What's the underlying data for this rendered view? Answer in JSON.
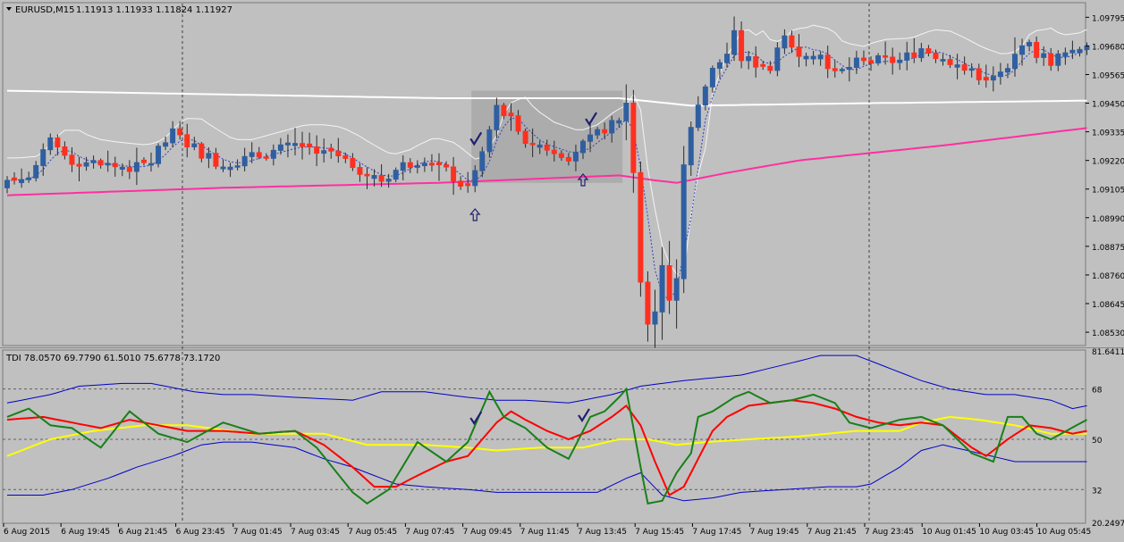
{
  "header": {
    "symbol": "EURUSD,M15",
    "ohlc": "1.11913 1.11933 1.11824 1.11927",
    "triangle_icon": "triangle-down-icon"
  },
  "indicator": {
    "label": "TDI 78.0570 69.7790 61.5010 75.6778 73.1720"
  },
  "colors": {
    "background": "#c0c0c0",
    "bull": "#2f5fa0",
    "bear": "#ff3020",
    "ema": "#ff2fa0",
    "white_line": "#ffffff",
    "tdi_green": "#188018",
    "tdi_red": "#ff0000",
    "tdi_yellow": "#ffff00",
    "tdi_blue": "#0000c8",
    "annotation": "#202070",
    "box": "#a8a8a8"
  },
  "chart_data": [
    {
      "type": "candlestick",
      "ylim": [
        1.0848,
        1.0985
      ],
      "price_ticks": [
        "1.09795",
        "1.09680",
        "1.09565",
        "1.09450",
        "1.09335",
        "1.09220",
        "1.09105",
        "1.08990",
        "1.08875",
        "1.08760",
        "1.08645",
        "1.08530"
      ],
      "time_labels": [
        "6 Aug 2015",
        "6 Aug 19:45",
        "6 Aug 21:45",
        "6 Aug 23:45",
        "7 Aug 01:45",
        "7 Aug 03:45",
        "7 Aug 05:45",
        "7 Aug 07:45",
        "7 Aug 09:45",
        "7 Aug 11:45",
        "7 Aug 13:45",
        "7 Aug 15:45",
        "7 Aug 17:45",
        "7 Aug 19:45",
        "7 Aug 21:45",
        "7 Aug 23:45",
        "10 Aug 01:45",
        "10 Aug 03:45",
        "10 Aug 05:45"
      ],
      "close_anchors": [
        [
          0,
          1.0914
        ],
        [
          3,
          1.0915
        ],
        [
          6,
          1.0929
        ],
        [
          9,
          1.0922
        ],
        [
          14,
          1.092
        ],
        [
          18,
          1.0919
        ],
        [
          20,
          1.0922
        ],
        [
          23,
          1.0933
        ],
        [
          27,
          1.0925
        ],
        [
          30,
          1.092
        ],
        [
          35,
          1.0924
        ],
        [
          40,
          1.0928
        ],
        [
          45,
          1.0926
        ],
        [
          48,
          1.092
        ],
        [
          52,
          1.0914
        ],
        [
          55,
          1.092
        ],
        [
          58,
          1.0923
        ],
        [
          61,
          1.0918
        ],
        [
          64,
          1.091
        ],
        [
          66,
          1.0925
        ],
        [
          68,
          1.0943
        ],
        [
          70,
          1.0938
        ],
        [
          72,
          1.093
        ],
        [
          75,
          1.0927
        ],
        [
          78,
          1.0924
        ],
        [
          81,
          1.093
        ],
        [
          83,
          1.0935
        ],
        [
          85,
          1.0937
        ],
        [
          86,
          1.0947
        ],
        [
          87,
          1.0917
        ],
        [
          88,
          1.0875
        ],
        [
          89,
          1.0858
        ],
        [
          90,
          1.0862
        ],
        [
          91,
          1.0878
        ],
        [
          92,
          1.0866
        ],
        [
          93,
          1.0874
        ],
        [
          94,
          1.0922
        ],
        [
          96,
          1.0946
        ],
        [
          98,
          1.0958
        ],
        [
          100,
          1.0965
        ],
        [
          101,
          1.0972
        ],
        [
          102,
          1.0963
        ],
        [
          104,
          1.0961
        ],
        [
          106,
          1.096
        ],
        [
          108,
          1.097
        ],
        [
          110,
          1.0966
        ],
        [
          113,
          1.0966
        ],
        [
          115,
          1.0956
        ],
        [
          118,
          1.0961
        ],
        [
          121,
          1.0962
        ],
        [
          124,
          1.0962
        ],
        [
          127,
          1.0967
        ],
        [
          131,
          1.0962
        ],
        [
          134,
          1.0957
        ],
        [
          137,
          1.0955
        ],
        [
          139,
          1.0958
        ],
        [
          141,
          1.097
        ],
        [
          143,
          1.0965
        ],
        [
          145,
          1.0962
        ],
        [
          148,
          1.0966
        ],
        [
          150,
          1.0969
        ]
      ],
      "ema_anchors": [
        [
          0,
          1.0908
        ],
        [
          30,
          1.0911
        ],
        [
          60,
          1.0913
        ],
        [
          85,
          1.0916
        ],
        [
          90,
          1.0914
        ],
        [
          93,
          1.0913
        ],
        [
          100,
          1.0917
        ],
        [
          110,
          1.0922
        ],
        [
          130,
          1.0928
        ],
        [
          150,
          1.0935
        ]
      ],
      "white_line_anchors": [
        [
          0,
          1.095
        ],
        [
          40,
          1.0948
        ],
        [
          60,
          1.0947
        ],
        [
          85,
          1.0947
        ],
        [
          95,
          1.0944
        ],
        [
          120,
          1.0945
        ],
        [
          150,
          1.0946
        ]
      ],
      "gray_box": {
        "bar_start": 65,
        "bar_end": 85,
        "top": 1.095,
        "bottom": 1.0913
      },
      "check_marks": [
        {
          "bar": 65,
          "price": 1.093
        },
        {
          "bar": 81,
          "price": 1.0938
        }
      ],
      "arrows": [
        {
          "bar": 65,
          "price": 1.09
        },
        {
          "bar": 80,
          "price": 1.0914
        }
      ]
    },
    {
      "type": "line",
      "title": "TDI",
      "yticks": [
        "81.6411",
        "68",
        "50",
        "32",
        "20.2497"
      ],
      "levels": [
        68,
        50,
        32
      ],
      "ylim": [
        20.2497,
        81.6411
      ],
      "series": [
        {
          "key": "green",
          "anchors": [
            [
              0,
              58
            ],
            [
              3,
              61
            ],
            [
              6,
              55
            ],
            [
              9,
              54
            ],
            [
              13,
              47
            ],
            [
              17,
              60
            ],
            [
              21,
              52
            ],
            [
              25,
              49
            ],
            [
              30,
              56
            ],
            [
              35,
              52
            ],
            [
              40,
              53
            ],
            [
              43,
              47
            ],
            [
              48,
              31
            ],
            [
              50,
              27
            ],
            [
              53,
              32
            ],
            [
              57,
              49
            ],
            [
              61,
              42
            ],
            [
              64,
              49
            ],
            [
              67,
              67
            ],
            [
              69,
              58
            ],
            [
              72,
              54
            ],
            [
              75,
              47
            ],
            [
              78,
              43
            ],
            [
              81,
              58
            ],
            [
              83,
              60
            ],
            [
              85,
              65
            ],
            [
              86,
              68
            ],
            [
              88,
              40
            ],
            [
              89,
              27
            ],
            [
              91,
              28
            ],
            [
              93,
              38
            ],
            [
              95,
              45
            ],
            [
              96,
              58
            ],
            [
              98,
              60
            ],
            [
              101,
              65
            ],
            [
              103,
              67
            ],
            [
              106,
              63
            ],
            [
              109,
              64
            ],
            [
              112,
              66
            ],
            [
              115,
              63
            ],
            [
              117,
              56
            ],
            [
              120,
              54
            ],
            [
              124,
              57
            ],
            [
              127,
              58
            ],
            [
              130,
              55
            ],
            [
              134,
              45
            ],
            [
              137,
              42
            ],
            [
              139,
              58
            ],
            [
              141,
              58
            ],
            [
              143,
              52
            ],
            [
              145,
              50
            ],
            [
              150,
              57
            ]
          ]
        },
        {
          "key": "red",
          "anchors": [
            [
              0,
              57
            ],
            [
              5,
              58
            ],
            [
              9,
              56
            ],
            [
              13,
              54
            ],
            [
              17,
              57
            ],
            [
              21,
              55
            ],
            [
              25,
              53
            ],
            [
              30,
              53
            ],
            [
              35,
              52
            ],
            [
              40,
              53
            ],
            [
              44,
              48
            ],
            [
              48,
              40
            ],
            [
              51,
              33
            ],
            [
              54,
              33
            ],
            [
              57,
              37
            ],
            [
              61,
              42
            ],
            [
              64,
              44
            ],
            [
              68,
              56
            ],
            [
              70,
              60
            ],
            [
              72,
              57
            ],
            [
              75,
              53
            ],
            [
              78,
              50
            ],
            [
              81,
              53
            ],
            [
              84,
              58
            ],
            [
              86,
              62
            ],
            [
              88,
              55
            ],
            [
              90,
              42
            ],
            [
              92,
              30
            ],
            [
              94,
              33
            ],
            [
              96,
              43
            ],
            [
              98,
              53
            ],
            [
              100,
              58
            ],
            [
              103,
              62
            ],
            [
              106,
              63
            ],
            [
              109,
              64
            ],
            [
              112,
              63
            ],
            [
              115,
              61
            ],
            [
              118,
              58
            ],
            [
              121,
              56
            ],
            [
              124,
              55
            ],
            [
              127,
              56
            ],
            [
              130,
              55
            ],
            [
              134,
              47
            ],
            [
              136,
              44
            ],
            [
              139,
              50
            ],
            [
              142,
              55
            ],
            [
              145,
              54
            ],
            [
              148,
              52
            ],
            [
              150,
              53
            ]
          ]
        },
        {
          "key": "yellow",
          "anchors": [
            [
              0,
              44
            ],
            [
              6,
              50
            ],
            [
              12,
              53
            ],
            [
              19,
              55
            ],
            [
              25,
              55
            ],
            [
              34,
              52
            ],
            [
              44,
              52
            ],
            [
              50,
              48
            ],
            [
              58,
              48
            ],
            [
              64,
              47
            ],
            [
              68,
              46
            ],
            [
              74,
              47
            ],
            [
              80,
              47
            ],
            [
              85,
              50
            ],
            [
              89,
              50
            ],
            [
              93,
              48
            ],
            [
              97,
              49
            ],
            [
              103,
              50
            ],
            [
              110,
              51
            ],
            [
              118,
              53
            ],
            [
              124,
              53
            ],
            [
              127,
              56
            ],
            [
              131,
              58
            ],
            [
              135,
              57
            ],
            [
              140,
              55
            ],
            [
              145,
              52
            ],
            [
              150,
              52
            ]
          ]
        },
        {
          "key": "upper",
          "anchors": [
            [
              0,
              63
            ],
            [
              6,
              66
            ],
            [
              10,
              69
            ],
            [
              16,
              70
            ],
            [
              20,
              70
            ],
            [
              26,
              67
            ],
            [
              30,
              66
            ],
            [
              34,
              66
            ],
            [
              40,
              65
            ],
            [
              48,
              64
            ],
            [
              52,
              67
            ],
            [
              58,
              67
            ],
            [
              64,
              65
            ],
            [
              68,
              64
            ],
            [
              72,
              64
            ],
            [
              78,
              63
            ],
            [
              84,
              66
            ],
            [
              88,
              69
            ],
            [
              94,
              71
            ],
            [
              102,
              73
            ],
            [
              110,
              78
            ],
            [
              113,
              80
            ],
            [
              118,
              80
            ],
            [
              122,
              76
            ],
            [
              127,
              71
            ],
            [
              131,
              68
            ],
            [
              136,
              66
            ],
            [
              140,
              66
            ],
            [
              145,
              64
            ],
            [
              148,
              61
            ],
            [
              150,
              62
            ]
          ]
        },
        {
          "key": "lower",
          "anchors": [
            [
              0,
              30
            ],
            [
              5,
              30
            ],
            [
              9,
              32
            ],
            [
              14,
              36
            ],
            [
              18,
              40
            ],
            [
              23,
              44
            ],
            [
              27,
              48
            ],
            [
              30,
              49
            ],
            [
              34,
              49
            ],
            [
              40,
              47
            ],
            [
              44,
              43
            ],
            [
              48,
              40
            ],
            [
              51,
              37
            ],
            [
              54,
              34
            ],
            [
              58,
              33
            ],
            [
              64,
              32
            ],
            [
              68,
              31
            ],
            [
              72,
              31
            ],
            [
              77,
              31
            ],
            [
              82,
              31
            ],
            [
              86,
              36
            ],
            [
              88,
              38
            ],
            [
              91,
              30
            ],
            [
              94,
              28
            ],
            [
              98,
              29
            ],
            [
              102,
              31
            ],
            [
              108,
              32
            ],
            [
              114,
              33
            ],
            [
              118,
              33
            ],
            [
              120,
              34
            ],
            [
              124,
              40
            ],
            [
              127,
              46
            ],
            [
              130,
              48
            ],
            [
              135,
              45
            ],
            [
              140,
              42
            ],
            [
              145,
              42
            ],
            [
              150,
              42
            ]
          ]
        }
      ],
      "check_marks": [
        {
          "bar": 65,
          "value": 57
        },
        {
          "bar": 80,
          "value": 58
        }
      ]
    }
  ]
}
